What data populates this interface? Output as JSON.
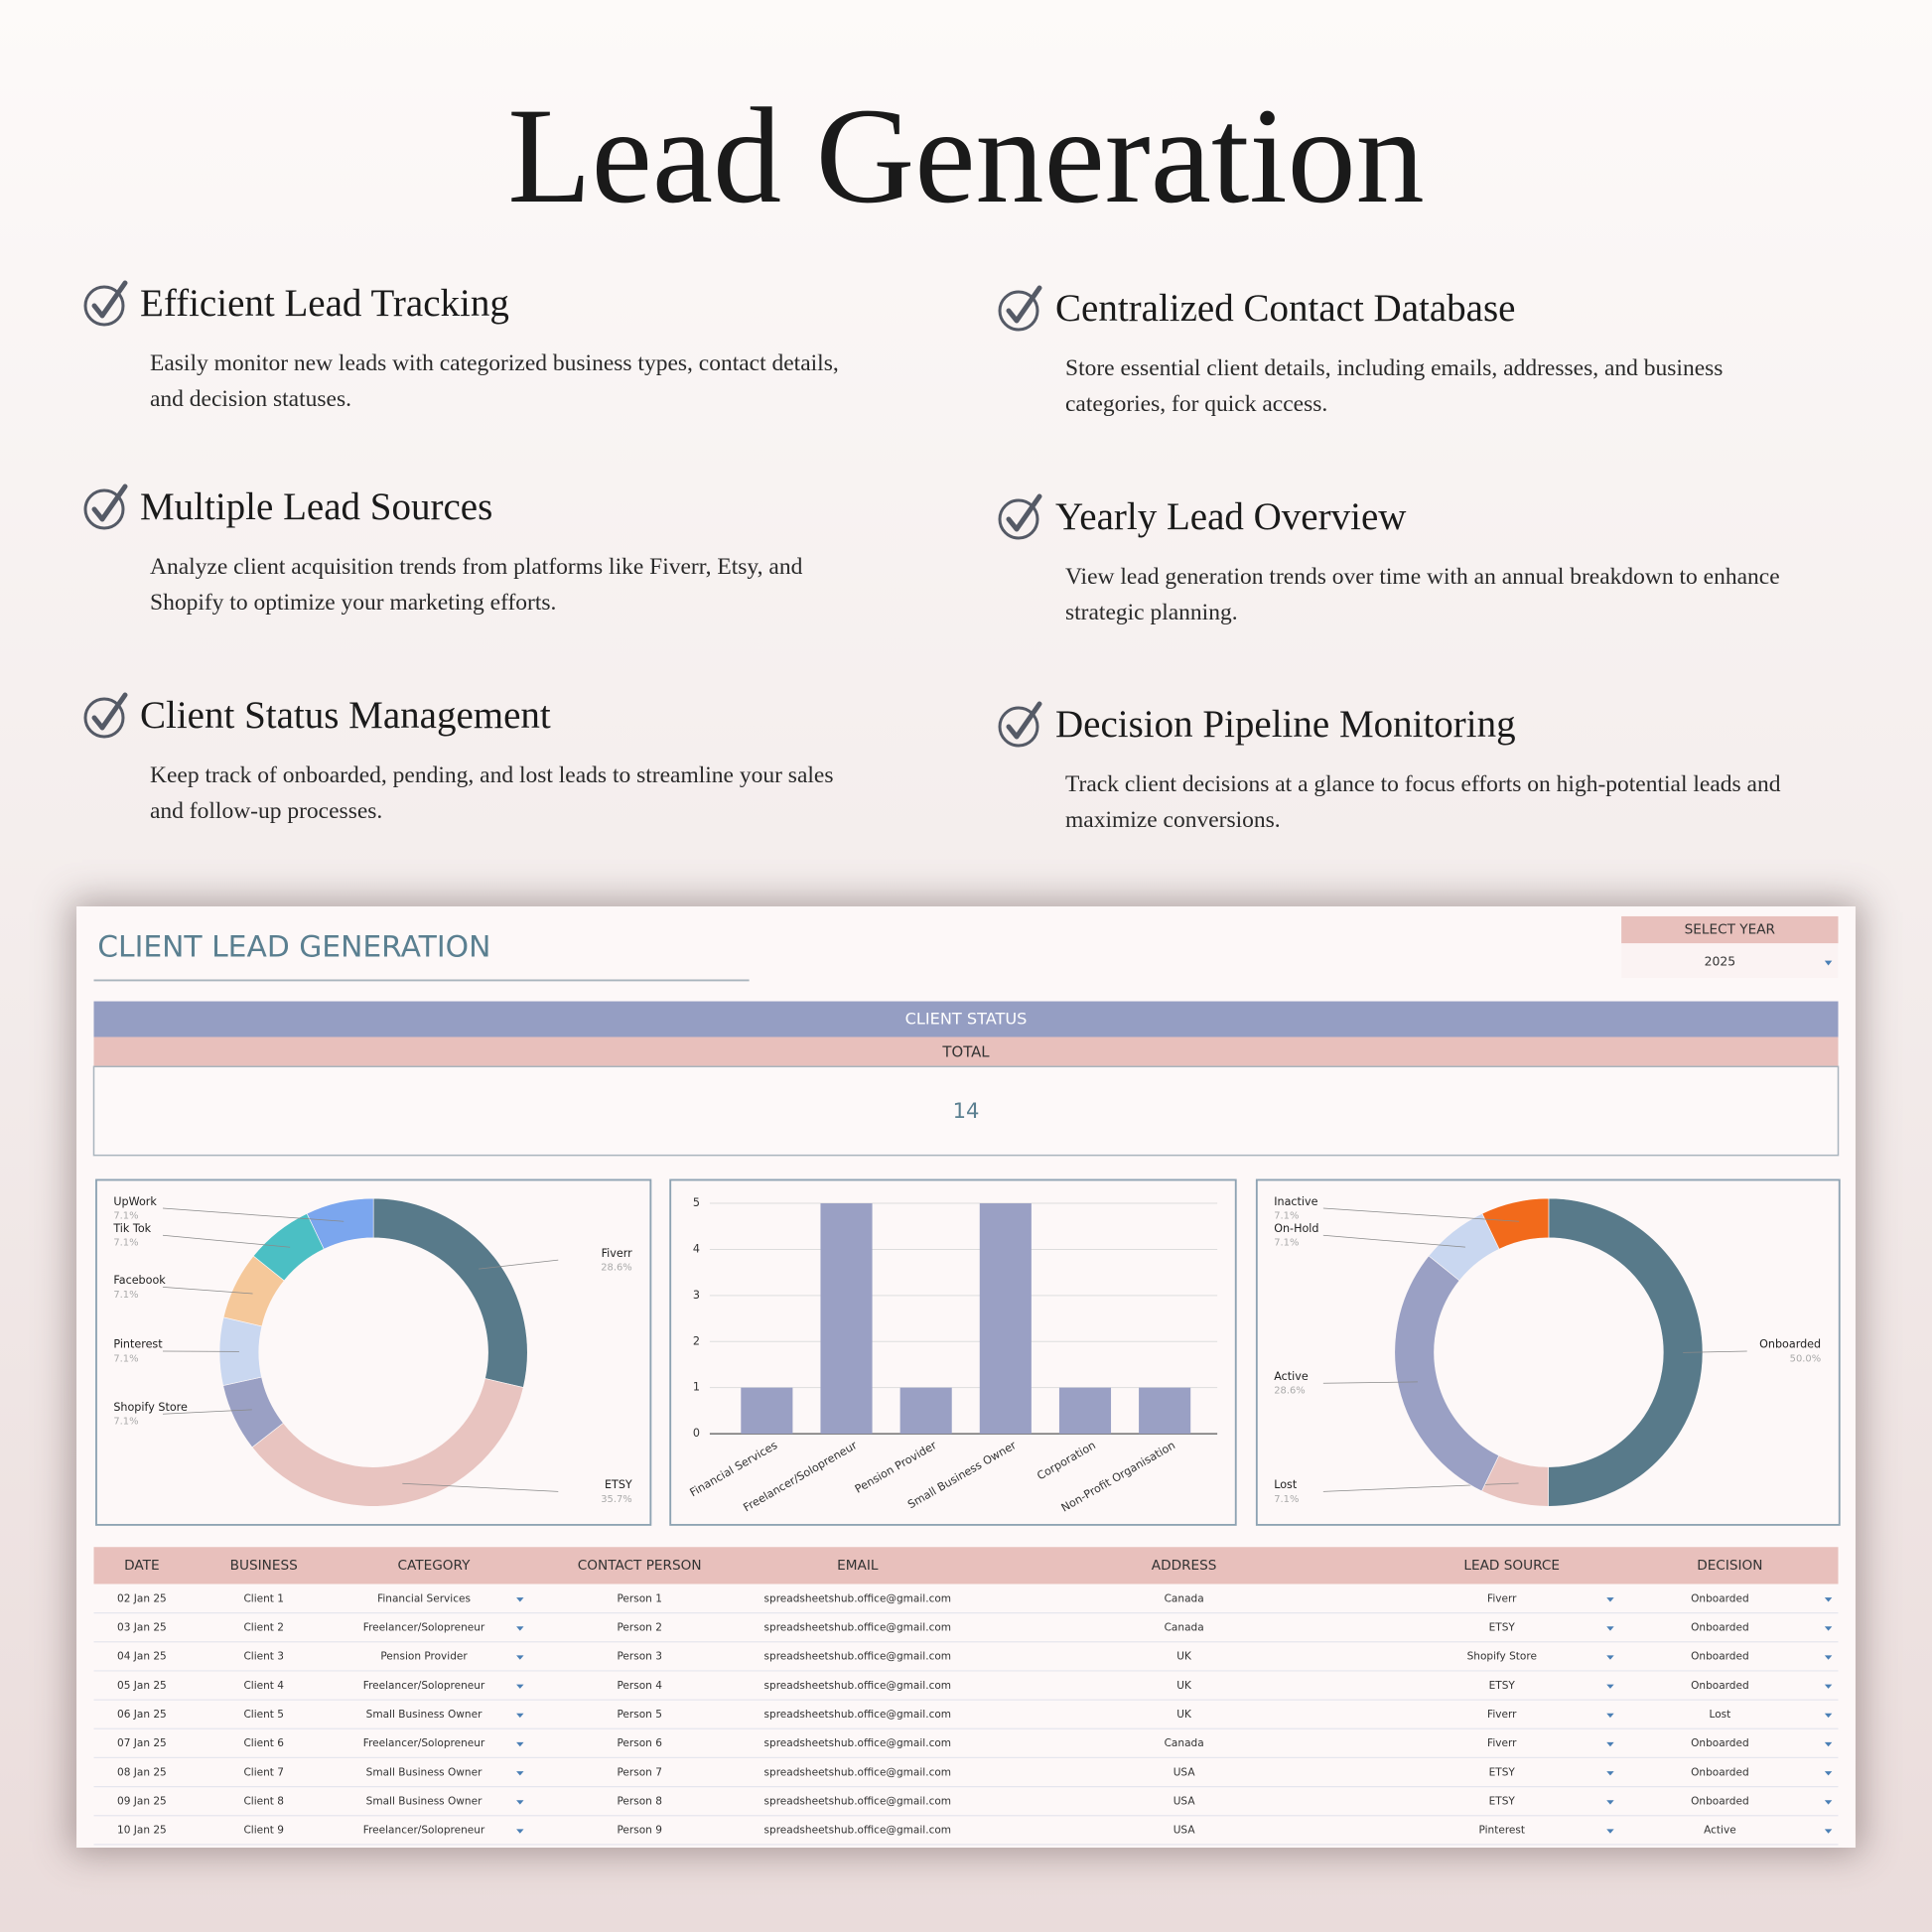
{
  "header": {
    "title": "Lead Generation"
  },
  "features": [
    {
      "title": "Efficient Lead Tracking",
      "text": "Easily monitor new leads with categorized business types, contact details, and decision statuses."
    },
    {
      "title": "Centralized Contact Database",
      "text": "Store essential client details, including emails, addresses, and business categories, for quick access."
    },
    {
      "title": "Multiple Lead Sources",
      "text": "Analyze client acquisition trends from platforms like Fiverr, Etsy, and Shopify to optimize your marketing efforts."
    },
    {
      "title": "Yearly Lead Overview",
      "text": "View lead generation trends over time with an annual breakdown to enhance strategic planning."
    },
    {
      "title": "Client Status Management",
      "text": "Keep track of onboarded, pending, and lost leads to streamline your sales and follow-up processes."
    },
    {
      "title": "Decision Pipeline Monitoring",
      "text": "Track client decisions at a glance to focus efforts on high-potential leads and maximize conversions."
    }
  ],
  "dashboard": {
    "title": "CLIENT LEAD GENERATION",
    "select_year": {
      "label": "SELECT YEAR",
      "value": "2025"
    },
    "status": {
      "title": "CLIENT STATUS",
      "total_label": "TOTAL",
      "total": 14
    }
  },
  "chart_data": [
    {
      "type": "donut",
      "categories": [
        "Fiverr",
        "ETSY",
        "Shopify Store",
        "Pinterest",
        "Facebook",
        "Tik Tok",
        "UpWork"
      ],
      "values": [
        28.6,
        35.7,
        7.1,
        7.1,
        7.1,
        7.1,
        7.1
      ],
      "value_labels": [
        "28.6%",
        "35.7%",
        "7.1%",
        "7.1%",
        "7.1%",
        "7.1%",
        "7.1%"
      ],
      "colors": [
        "#587a8a",
        "#e8c4c0",
        "#9aa0c4",
        "#c9d7f0",
        "#f5c89a",
        "#4bbfc4",
        "#7ba6ee"
      ]
    },
    {
      "type": "bar",
      "categories": [
        "Financial Services",
        "Freelancer/Solopreneur",
        "Pension Provider",
        "Small Business Owner",
        "Corporation",
        "Non-Profit Organisation"
      ],
      "values": [
        1,
        5,
        1,
        5,
        1,
        1
      ],
      "color": "#9aa0c4",
      "ylim": [
        0,
        5
      ],
      "yticks": [
        0,
        1,
        2,
        3,
        4,
        5
      ],
      "grid": true
    },
    {
      "type": "donut",
      "categories": [
        "Onboarded",
        "Lost",
        "Active",
        "On-Hold",
        "Inactive"
      ],
      "values": [
        50,
        7.1,
        28.6,
        7.1,
        7.1
      ],
      "value_labels": [
        "50.0%",
        "7.1%",
        "28.6%",
        "7.1%",
        "7.1%"
      ],
      "colors": [
        "#587a8a",
        "#e8c4c0",
        "#9aa0c4",
        "#c9d7f0",
        "#f26a1b"
      ]
    }
  ],
  "table": {
    "columns": [
      "DATE",
      "BUSINESS",
      "CATEGORY",
      "CONTACT PERSON",
      "EMAIL",
      "ADDRESS",
      "LEAD SOURCE",
      "DECISION"
    ],
    "rows": [
      [
        "02 Jan 25",
        "Client 1",
        "Financial Services",
        "Person 1",
        "spreadsheetshub.office@gmail.com",
        "Canada",
        "Fiverr",
        "Onboarded"
      ],
      [
        "03 Jan 25",
        "Client 2",
        "Freelancer/Solopreneur",
        "Person 2",
        "spreadsheetshub.office@gmail.com",
        "Canada",
        "ETSY",
        "Onboarded"
      ],
      [
        "04 Jan 25",
        "Client 3",
        "Pension Provider",
        "Person 3",
        "spreadsheetshub.office@gmail.com",
        "UK",
        "Shopify Store",
        "Onboarded"
      ],
      [
        "05 Jan 25",
        "Client 4",
        "Freelancer/Solopreneur",
        "Person 4",
        "spreadsheetshub.office@gmail.com",
        "UK",
        "ETSY",
        "Onboarded"
      ],
      [
        "06 Jan 25",
        "Client 5",
        "Small Business Owner",
        "Person 5",
        "spreadsheetshub.office@gmail.com",
        "UK",
        "Fiverr",
        "Lost"
      ],
      [
        "07 Jan 25",
        "Client 6",
        "Freelancer/Solopreneur",
        "Person 6",
        "spreadsheetshub.office@gmail.com",
        "Canada",
        "Fiverr",
        "Onboarded"
      ],
      [
        "08 Jan 25",
        "Client 7",
        "Small Business Owner",
        "Person 7",
        "spreadsheetshub.office@gmail.com",
        "USA",
        "ETSY",
        "Onboarded"
      ],
      [
        "09 Jan 25",
        "Client 8",
        "Small Business Owner",
        "Person 8",
        "spreadsheetshub.office@gmail.com",
        "USA",
        "ETSY",
        "Onboarded"
      ],
      [
        "10 Jan 25",
        "Client 9",
        "Freelancer/Solopreneur",
        "Person 9",
        "spreadsheetshub.office@gmail.com",
        "USA",
        "Pinterest",
        "Active"
      ]
    ]
  }
}
